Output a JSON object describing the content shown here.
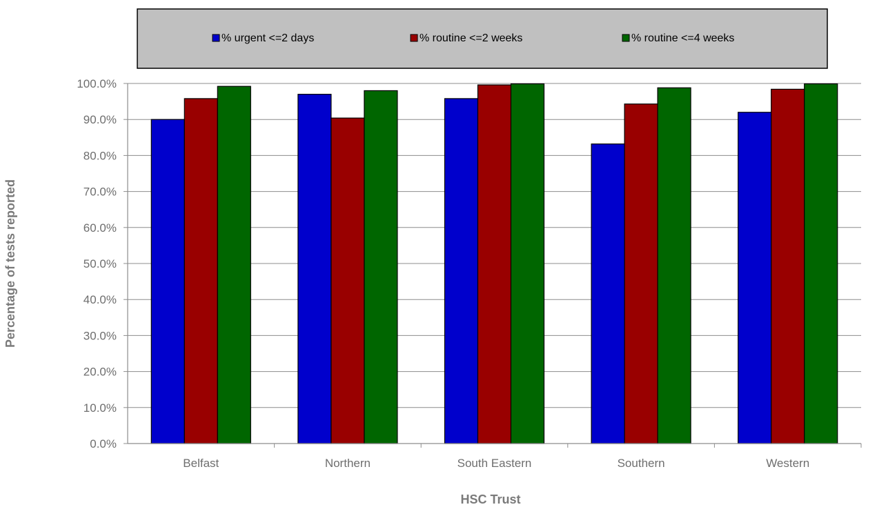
{
  "chart_data": {
    "type": "bar",
    "title": "",
    "xlabel": "HSC Trust",
    "ylabel": "Percentage of tests reported",
    "categories": [
      "Belfast",
      "Northern",
      "South Eastern",
      "Southern",
      "Western"
    ],
    "series": [
      {
        "name": "% urgent <=2 days",
        "color": "#0000cc",
        "values": [
          90.0,
          97.0,
          95.8,
          83.2,
          92.0
        ]
      },
      {
        "name": "% routine <=2 weeks",
        "color": "#990000",
        "values": [
          95.8,
          90.4,
          99.6,
          94.3,
          98.4
        ]
      },
      {
        "name": "% routine <=4 weeks",
        "color": "#006600",
        "values": [
          99.2,
          98.0,
          99.9,
          98.8,
          99.9
        ]
      }
    ],
    "ylim": [
      0,
      100
    ],
    "ytick_step": 10,
    "ytick_format": "percent-1dp",
    "grid": true,
    "legend_position": "top",
    "legend_background": "#c0c0c0"
  }
}
